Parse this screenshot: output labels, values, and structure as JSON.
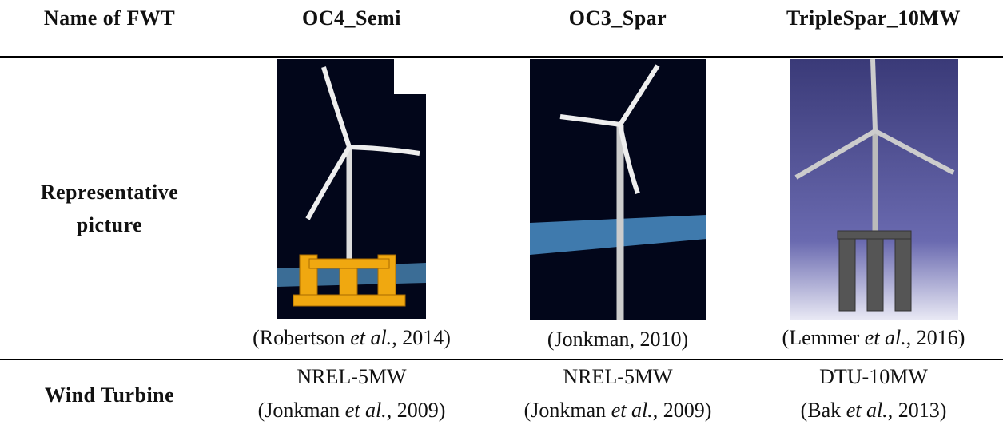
{
  "table": {
    "header": [
      "Name of FWT",
      "OC4_Semi",
      "OC3_Spar",
      "TripleSpar_10MW"
    ],
    "picture_row": {
      "label": [
        "Representative",
        "picture"
      ],
      "captions": [
        [
          "(Robertson ",
          "et al.",
          ", 2014)"
        ],
        [
          "(Jonkman, 2010)"
        ],
        [
          "(Lemmer ",
          "et al.",
          ", 2016)"
        ]
      ]
    },
    "turbine_row": {
      "label": "Wind Turbine",
      "cells": [
        {
          "name": "NREL-5MW",
          "ref": [
            "(Jonkman ",
            "et al.",
            ", 2009)"
          ]
        },
        {
          "name": "NREL-5MW",
          "ref": [
            "(Jonkman ",
            "et al.",
            ", 2009)"
          ]
        },
        {
          "name": "DTU-10MW",
          "ref": [
            "(Bak ",
            "et al.",
            ", 2013)"
          ]
        }
      ]
    }
  }
}
